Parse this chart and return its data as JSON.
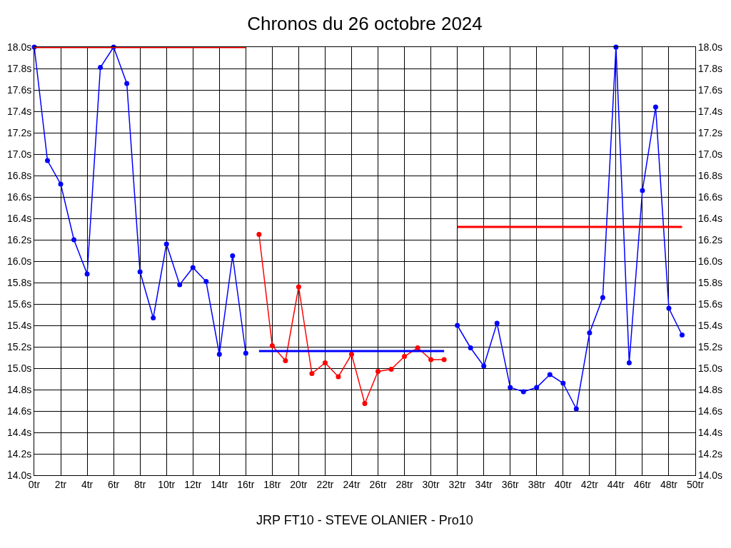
{
  "chart_data": {
    "type": "line",
    "title": "Chronos du 26 octobre 2024",
    "xlabel": "JRP FT10 - STEVE OLANIER - Pro10",
    "xlim": [
      0,
      50
    ],
    "xticks": [
      {
        "value": 0,
        "label": "0tr"
      },
      {
        "value": 2,
        "label": "2tr"
      },
      {
        "value": 4,
        "label": "4tr"
      },
      {
        "value": 6,
        "label": "6tr"
      },
      {
        "value": 8,
        "label": "8tr"
      },
      {
        "value": 10,
        "label": "10tr"
      },
      {
        "value": 12,
        "label": "12tr"
      },
      {
        "value": 14,
        "label": "14tr"
      },
      {
        "value": 16,
        "label": "16tr"
      },
      {
        "value": 18,
        "label": "18tr"
      },
      {
        "value": 20,
        "label": "20tr"
      },
      {
        "value": 22,
        "label": "22tr"
      },
      {
        "value": 24,
        "label": "24tr"
      },
      {
        "value": 26,
        "label": "26tr"
      },
      {
        "value": 28,
        "label": "28tr"
      },
      {
        "value": 30,
        "label": "30tr"
      },
      {
        "value": 32,
        "label": "32tr"
      },
      {
        "value": 34,
        "label": "34tr"
      },
      {
        "value": 36,
        "label": "36tr"
      },
      {
        "value": 38,
        "label": "38tr"
      },
      {
        "value": 40,
        "label": "40tr"
      },
      {
        "value": 42,
        "label": "42tr"
      },
      {
        "value": 44,
        "label": "44tr"
      },
      {
        "value": 46,
        "label": "46tr"
      },
      {
        "value": 48,
        "label": "48tr"
      },
      {
        "value": 50,
        "label": "50tr"
      }
    ],
    "ylim": [
      14.0,
      18.0
    ],
    "yticks": [
      {
        "value": 14.0,
        "label": "14.0s"
      },
      {
        "value": 14.2,
        "label": "14.2s"
      },
      {
        "value": 14.4,
        "label": "14.4s"
      },
      {
        "value": 14.6,
        "label": "14.6s"
      },
      {
        "value": 14.8,
        "label": "14.8s"
      },
      {
        "value": 15.0,
        "label": "15.0s"
      },
      {
        "value": 15.2,
        "label": "15.2s"
      },
      {
        "value": 15.4,
        "label": "15.4s"
      },
      {
        "value": 15.6,
        "label": "15.6s"
      },
      {
        "value": 15.8,
        "label": "15.8s"
      },
      {
        "value": 16.0,
        "label": "16.0s"
      },
      {
        "value": 16.2,
        "label": "16.2s"
      },
      {
        "value": 16.4,
        "label": "16.4s"
      },
      {
        "value": 16.6,
        "label": "16.6s"
      },
      {
        "value": 16.8,
        "label": "16.8s"
      },
      {
        "value": 17.0,
        "label": "17.0s"
      },
      {
        "value": 17.2,
        "label": "17.2s"
      },
      {
        "value": 17.4,
        "label": "17.4s"
      },
      {
        "value": 17.6,
        "label": "17.6s"
      },
      {
        "value": 17.8,
        "label": "17.8s"
      },
      {
        "value": 18.0,
        "label": "18.0s"
      }
    ],
    "y2lim": [
      14.0,
      18.0
    ],
    "y2ticks": [
      {
        "value": 14.0,
        "label": "14.0s"
      },
      {
        "value": 14.2,
        "label": "14.2s"
      },
      {
        "value": 14.4,
        "label": "14.4s"
      },
      {
        "value": 14.6,
        "label": "14.6s"
      },
      {
        "value": 14.8,
        "label": "14.8s"
      },
      {
        "value": 15.0,
        "label": "15.0s"
      },
      {
        "value": 15.2,
        "label": "15.2s"
      },
      {
        "value": 15.4,
        "label": "15.4s"
      },
      {
        "value": 15.6,
        "label": "15.6s"
      },
      {
        "value": 15.8,
        "label": "15.8s"
      },
      {
        "value": 16.0,
        "label": "16.0s"
      },
      {
        "value": 16.2,
        "label": "16.2s"
      },
      {
        "value": 16.4,
        "label": "16.4s"
      },
      {
        "value": 16.6,
        "label": "16.6s"
      },
      {
        "value": 16.8,
        "label": "16.8s"
      },
      {
        "value": 17.0,
        "label": "17.0s"
      },
      {
        "value": 17.2,
        "label": "17.2s"
      },
      {
        "value": 17.4,
        "label": "17.4s"
      },
      {
        "value": 17.6,
        "label": "17.6s"
      },
      {
        "value": 17.8,
        "label": "17.8s"
      },
      {
        "value": 18.0,
        "label": "18.0s"
      }
    ],
    "grid": true,
    "marker": "circle",
    "line_style": "solid",
    "series": [
      {
        "color": "#0000ff",
        "x": [
          0,
          1,
          2,
          3,
          4,
          5,
          6,
          7,
          8,
          9,
          10,
          11,
          12,
          13,
          14,
          15,
          16
        ],
        "values": [
          18.0,
          16.94,
          16.72,
          16.2,
          15.88,
          17.81,
          18.0,
          17.66,
          15.9,
          15.47,
          16.16,
          15.78,
          15.94,
          15.81,
          15.13,
          16.05,
          15.14
        ]
      },
      {
        "color": "#ff0000",
        "x": [
          17,
          18,
          19,
          20,
          21,
          22,
          23,
          24,
          25,
          26,
          27,
          28,
          29,
          30,
          31
        ],
        "values": [
          16.25,
          15.21,
          15.07,
          15.76,
          14.95,
          15.05,
          14.92,
          15.13,
          14.67,
          14.97,
          14.99,
          15.11,
          15.19,
          15.08,
          15.08
        ]
      },
      {
        "color": "#0000ff",
        "x": [
          32,
          33,
          34,
          35,
          36,
          37,
          38,
          39,
          40,
          41,
          42,
          43,
          44,
          45,
          46,
          47,
          48,
          49
        ],
        "values": [
          15.4,
          15.19,
          15.02,
          15.42,
          14.82,
          14.78,
          14.82,
          14.94,
          14.86,
          14.62,
          15.33,
          15.66,
          18.0,
          15.05,
          16.66,
          17.44,
          15.56,
          15.31
        ]
      },
      {
        "type": "line",
        "marker": "none",
        "color": "#ff0000",
        "x": [
          0,
          16
        ],
        "values": [
          18.0,
          18.0
        ]
      },
      {
        "type": "line",
        "marker": "none",
        "color": "#0000ff",
        "x": [
          17,
          31
        ],
        "values": [
          15.16,
          15.16
        ]
      },
      {
        "type": "line",
        "marker": "none",
        "color": "#ff0000",
        "x": [
          32,
          49
        ],
        "values": [
          16.32,
          16.32
        ]
      }
    ]
  }
}
